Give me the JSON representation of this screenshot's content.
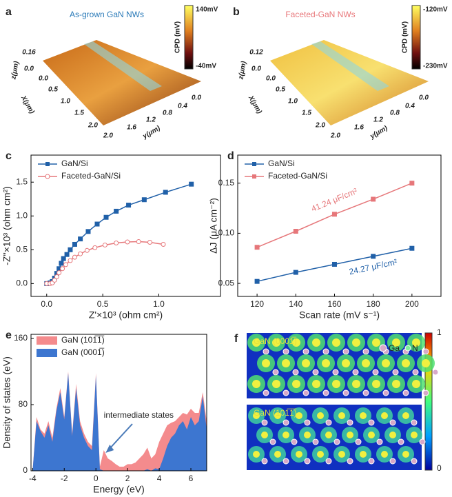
{
  "images": [
    {
      "label": "a",
      "title": "As-grown GaN NWs",
      "colorbar_title": "CPD (mV)",
      "colorbar_max": "140mV",
      "colorbar_min": "-40mV",
      "z_label": "z(μm)",
      "z_ticks": [
        "0.16",
        "0.0"
      ],
      "x_label": "X(μm)",
      "x_ticks": [
        "0.0",
        "0.5",
        "1.0",
        "1.5",
        "2.0"
      ],
      "y_label": "y(μm)",
      "y_ticks": [
        "0.0",
        "0.4",
        "0.8",
        "1.2",
        "1.6",
        "2.0"
      ]
    },
    {
      "label": "b",
      "title": "Faceted-GaN NWs",
      "colorbar_title": "CPD (mV)",
      "colorbar_max": "-120mV",
      "colorbar_min": "-230mV",
      "z_label": "z(μm)",
      "z_ticks": [
        "0.12",
        "0.0"
      ],
      "x_label": "X(μm)",
      "x_ticks": [
        "0.0",
        "0.5",
        "1.0",
        "1.5",
        "2.0"
      ],
      "y_label": "y(μm)",
      "y_ticks": [
        "0.0",
        "0.4",
        "0.8",
        "1.2",
        "1.6",
        "2.0"
      ]
    },
    {
      "label": "f",
      "colorbar_max": "1",
      "colorbar_min": "0",
      "top_label": "GaN (0001̅)",
      "bottom_label": "GaN (101̅1̅)",
      "legend": [
        "Ga",
        "N"
      ]
    }
  ],
  "chart_data": [
    {
      "type": "line",
      "label": "c",
      "xlabel": "Z'×10³ (ohm cm²)",
      "ylabel": "-Z''×10³ (ohm cm²)",
      "xlim": [
        -0.14,
        1.55
      ],
      "ylim": [
        -0.19,
        1.9
      ],
      "xticks": [
        {
          "value": 0,
          "label": "0.0"
        },
        0.5,
        {
          "value": 1,
          "label": "1.0"
        }
      ],
      "yticks": [
        {
          "value": 0,
          "label": "0.0"
        },
        0.5,
        {
          "value": 1,
          "label": "1.0"
        },
        1.5
      ],
      "series": [
        {
          "name": "GaN/Si",
          "color": "#2060a8",
          "marker": "square",
          "x": [
            0,
            0.03,
            0.05,
            0.07,
            0.09,
            0.11,
            0.13,
            0.15,
            0.18,
            0.21,
            0.25,
            0.3,
            0.37,
            0.45,
            0.53,
            0.62,
            0.73,
            0.87,
            1.06,
            1.29
          ],
          "values": [
            0,
            0.01,
            0.03,
            0.08,
            0.15,
            0.22,
            0.3,
            0.37,
            0.43,
            0.5,
            0.58,
            0.66,
            0.77,
            0.88,
            0.98,
            1.07,
            1.16,
            1.24,
            1.35,
            1.47
          ]
        },
        {
          "name": "Faceted-GaN/Si",
          "color": "#e6777a",
          "marker": "circle",
          "x": [
            0,
            0.03,
            0.05,
            0.07,
            0.09,
            0.11,
            0.14,
            0.17,
            0.21,
            0.25,
            0.3,
            0.36,
            0.43,
            0.52,
            0.62,
            0.72,
            0.82,
            0.92,
            1.04
          ],
          "values": [
            0,
            0,
            0.01,
            0.05,
            0.1,
            0.16,
            0.22,
            0.28,
            0.34,
            0.39,
            0.44,
            0.49,
            0.53,
            0.57,
            0.6,
            0.615,
            0.62,
            0.61,
            0.58
          ]
        }
      ]
    },
    {
      "type": "line",
      "label": "d",
      "xlabel": "Scan rate (mV s⁻¹)",
      "ylabel": "ΔJ (μA cm⁻²)",
      "xlim": [
        110,
        215
      ],
      "ylim": [
        0.037,
        0.178
      ],
      "xticks": [
        120,
        140,
        160,
        180,
        200
      ],
      "yticks": [
        0.05,
        {
          "value": 0.1,
          "label": "0.10"
        },
        0.15
      ],
      "annotations": [
        "41.24 μF/cm²",
        "24.27 μF/cm²"
      ],
      "series": [
        {
          "name": "GaN/Si",
          "color": "#2060a8",
          "marker": "square",
          "x": [
            120,
            140,
            160,
            180,
            200
          ],
          "values": [
            0.052,
            0.061,
            0.069,
            0.077,
            0.085
          ]
        },
        {
          "name": "Faceted-GaN/Si",
          "color": "#e6777a",
          "marker": "square",
          "x": [
            120,
            140,
            160,
            180,
            200
          ],
          "values": [
            0.086,
            0.102,
            0.119,
            0.134,
            0.15
          ]
        }
      ]
    },
    {
      "type": "area",
      "label": "e",
      "xlabel": "Energy (eV)",
      "ylabel": "Density of states (eV)",
      "xlim": [
        -4.1,
        7
      ],
      "ylim": [
        0,
        165
      ],
      "xticks": [
        -4,
        -2,
        0,
        2,
        4,
        6
      ],
      "yticks": [
        0,
        80,
        160
      ],
      "annotations": [
        "intermediate states"
      ],
      "x": [
        -4,
        -3.75,
        -3.5,
        -3.25,
        -3,
        -2.75,
        -2.5,
        -2.25,
        -2,
        -1.75,
        -1.5,
        -1.25,
        -1,
        -0.75,
        -0.5,
        -0.25,
        0,
        0.25,
        0.5,
        0.75,
        1,
        1.25,
        1.5,
        1.75,
        2,
        2.25,
        2.5,
        2.75,
        3,
        3.25,
        3.5,
        3.75,
        4,
        4.25,
        4.5,
        4.75,
        5,
        5.25,
        5.5,
        5.75,
        6,
        6.25,
        6.5,
        6.75,
        7
      ],
      "series": [
        {
          "name": "GaN (101̅1̅)",
          "color": "#f48b8d",
          "values": [
            0,
            65,
            50,
            45,
            60,
            40,
            75,
            100,
            65,
            120,
            45,
            105,
            60,
            45,
            35,
            30,
            118,
            5,
            25,
            15,
            12,
            8,
            5,
            5,
            8,
            8,
            10,
            15,
            20,
            28,
            15,
            20,
            35,
            45,
            55,
            58,
            60,
            65,
            70,
            68,
            75,
            70,
            70,
            95,
            60
          ]
        },
        {
          "name": "GaN (0001̅)",
          "color": "#3d76d0",
          "values": [
            0,
            60,
            48,
            40,
            55,
            35,
            72,
            95,
            62,
            118,
            42,
            100,
            55,
            40,
            30,
            25,
            115,
            2,
            0,
            0,
            0,
            0,
            0,
            0,
            0,
            0,
            0,
            0,
            0,
            2,
            0,
            3,
            2,
            15,
            30,
            40,
            45,
            55,
            60,
            50,
            65,
            55,
            60,
            90,
            50
          ]
        }
      ]
    }
  ]
}
